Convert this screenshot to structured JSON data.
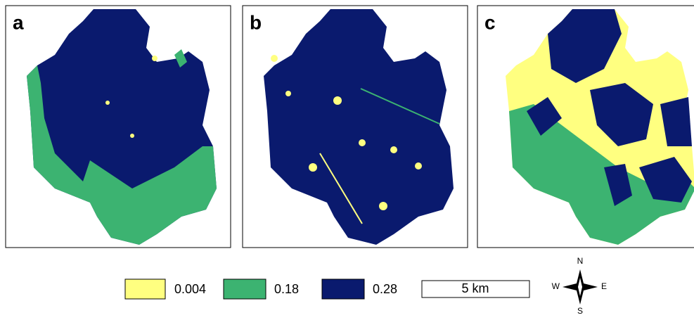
{
  "panels": [
    {
      "label": "a"
    },
    {
      "label": "b"
    },
    {
      "label": "c"
    }
  ],
  "legend": [
    {
      "label": "0.004",
      "color": "#ffff80"
    },
    {
      "label": "0.18",
      "color": "#3cb371"
    },
    {
      "label": "0.28",
      "color": "#0a1a6e"
    }
  ],
  "scale_bar": {
    "label": "5 km"
  },
  "compass": {
    "north": "N",
    "south": "S",
    "east": "E",
    "west": "W"
  }
}
